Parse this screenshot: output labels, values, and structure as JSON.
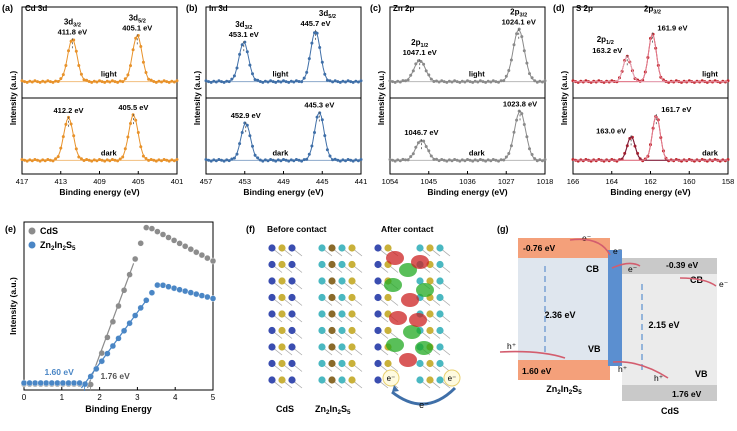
{
  "chart_data": [
    {
      "panel": "(a)",
      "type": "line",
      "title": "Cd 3d",
      "xlabel": "Binding energy (eV)",
      "ylabel": "Intensity (a.u.)",
      "xlim": [
        417,
        401
      ],
      "xticks": [
        "417",
        "413",
        "409",
        "405",
        "401"
      ],
      "color": "#e8922a",
      "traces": [
        {
          "name": "light",
          "peaks": [
            {
              "label": "3d3/2",
              "sub": "3/2",
              "energy_label": "411.8 eV",
              "x": 411.8,
              "height": 0.75
            },
            {
              "label": "3d5/2",
              "sub": "5/2",
              "energy_label": "405.1 eV",
              "x": 405.1,
              "height": 0.82
            }
          ]
        },
        {
          "name": "dark",
          "peaks": [
            {
              "energy_label": "412.2 eV",
              "x": 412.2,
              "height": 0.8
            },
            {
              "energy_label": "405.5 eV",
              "x": 405.5,
              "height": 0.85
            }
          ]
        }
      ]
    },
    {
      "panel": "(b)",
      "type": "line",
      "title": "In 3d",
      "xlabel": "Binding energy (eV)",
      "ylabel": "Intensity (a.u.)",
      "xlim": [
        457,
        441
      ],
      "xticks": [
        "457",
        "453",
        "449",
        "445",
        "441"
      ],
      "color": "#3f6fa8",
      "traces": [
        {
          "name": "light",
          "peaks": [
            {
              "label": "3d3/2",
              "sub": "3/2",
              "energy_label": "453.1 eV",
              "x": 453.1,
              "height": 0.7
            },
            {
              "label": "3d5/2",
              "sub": "5/2",
              "energy_label": "445.7 eV",
              "x": 445.7,
              "height": 0.9
            }
          ]
        },
        {
          "name": "dark",
          "peaks": [
            {
              "energy_label": "452.9 eV",
              "x": 452.9,
              "height": 0.7
            },
            {
              "energy_label": "445.3 eV",
              "x": 445.3,
              "height": 0.9
            }
          ]
        }
      ]
    },
    {
      "panel": "(c)",
      "type": "line",
      "title": "Zn 2p",
      "xlabel": "Binding energy (eV)",
      "ylabel": "Intensity (a.u.)",
      "xlim": [
        1054,
        1018
      ],
      "xticks": [
        "1054",
        "1045",
        "1036",
        "1027",
        "1018"
      ],
      "color": "#8a8a8a",
      "traces": [
        {
          "name": "light",
          "peaks": [
            {
              "label": "2p1/2",
              "sub": "1/2",
              "energy_label": "1047.1 eV",
              "x": 1047.1,
              "height": 0.38
            },
            {
              "label": "2p3/2",
              "sub": "3/2",
              "energy_label": "1024.1 eV",
              "x": 1024.1,
              "height": 0.92
            }
          ]
        },
        {
          "name": "dark",
          "peaks": [
            {
              "energy_label": "1046.7 eV",
              "x": 1046.7,
              "height": 0.38
            },
            {
              "energy_label": "1023.8 eV",
              "x": 1023.8,
              "height": 0.92
            }
          ]
        }
      ]
    },
    {
      "panel": "(d)",
      "type": "line",
      "title": "S 2p",
      "xlabel": "Binding energy (eV)",
      "ylabel": "Intensity (a.u.)",
      "xlim": [
        166,
        158
      ],
      "xticks": [
        "166",
        "164",
        "162",
        "160",
        "158"
      ],
      "color": "#c0272d",
      "traces": [
        {
          "name": "light",
          "peaks": [
            {
              "label": "2p1/2",
              "sub": "1/2",
              "energy_label": "163.2 eV",
              "x": 163.2,
              "height": 0.45
            },
            {
              "label": "2p3/2",
              "sub": "3/2",
              "energy_label": "161.9 eV",
              "x": 161.9,
              "height": 0.85
            }
          ]
        },
        {
          "name": "dark",
          "peaks": [
            {
              "energy_label": "163.0 eV",
              "x": 163.0,
              "height": 0.45
            },
            {
              "energy_label": "161.7 eV",
              "x": 161.7,
              "height": 0.85
            }
          ]
        }
      ]
    },
    {
      "panel": "(e)",
      "type": "scatter",
      "xlabel": "Binding Energy",
      "ylabel": "Intensity (a.u.)",
      "xlim": [
        0,
        5
      ],
      "xticks": [
        "0",
        "1",
        "2",
        "3",
        "4",
        "5"
      ],
      "series": [
        {
          "name": "CdS",
          "color": "#8c8c8c",
          "vb_label": "1.76 eV",
          "vb_edge": 1.76
        },
        {
          "name": "Zn2In2S5",
          "sub": "2",
          "color": "#4a86c5",
          "vb_label": "1.60 eV",
          "vb_edge": 1.6
        }
      ]
    }
  ],
  "panel_f": {
    "label": "(f)",
    "before_title": "Before contact",
    "after_title": "After contact",
    "left_label": "CdS",
    "right_label": "Zn2In2S5",
    "electron": "e⁻"
  },
  "panel_g": {
    "label": "(g)",
    "zis_cb": "-0.76 eV",
    "zis_vb": "1.60 eV",
    "zis_gap": "2.36 eV",
    "cds_cb": "-0.39 eV",
    "cds_vb": "1.76 eV",
    "cds_gap": "2.15 eV",
    "cb_label": "CB",
    "vb_label": "VB",
    "electron": "e⁻",
    "hole": "h⁺",
    "zis_name": "Zn2In2S5",
    "cds_name": "CdS"
  }
}
